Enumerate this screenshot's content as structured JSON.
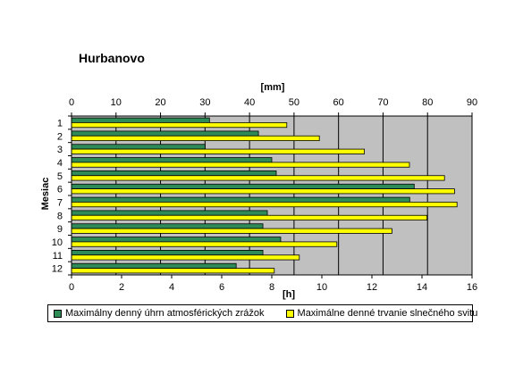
{
  "chart_data": {
    "type": "bar",
    "orientation": "horizontal",
    "title": "Hurbanovo",
    "ylabel": "Mesiac",
    "categories": [
      "1",
      "2",
      "3",
      "4",
      "5",
      "6",
      "7",
      "8",
      "9",
      "10",
      "11",
      "12"
    ],
    "x_top": {
      "label": "[mm]",
      "lim": [
        0,
        90
      ],
      "ticks": [
        "0",
        "10",
        "20",
        "30",
        "40",
        "50",
        "60",
        "70",
        "80",
        "90"
      ]
    },
    "x_bottom": {
      "label": "[h]",
      "lim": [
        0,
        16
      ],
      "ticks": [
        "0",
        "2",
        "4",
        "6",
        "8",
        "10",
        "12",
        "14",
        "16"
      ]
    },
    "series": [
      {
        "name": "Maximálny denný úhrn atmosférických zrážok",
        "axis": "top",
        "unit": "mm",
        "color": "#2e8b57",
        "values": [
          31,
          42,
          30,
          45,
          46,
          77,
          76,
          44,
          43,
          47,
          43,
          37
        ]
      },
      {
        "name": "Maximálne denné trvanie slnečného svitu",
        "axis": "bottom",
        "unit": "h",
        "color": "#ffff00",
        "values": [
          8.6,
          9.9,
          11.7,
          13.5,
          14.9,
          15.3,
          15.4,
          14.2,
          12.8,
          10.6,
          9.1,
          8.1
        ]
      }
    ],
    "plot_background": "#c0c0c0",
    "grid": "vertical",
    "legend_position": "bottom"
  }
}
